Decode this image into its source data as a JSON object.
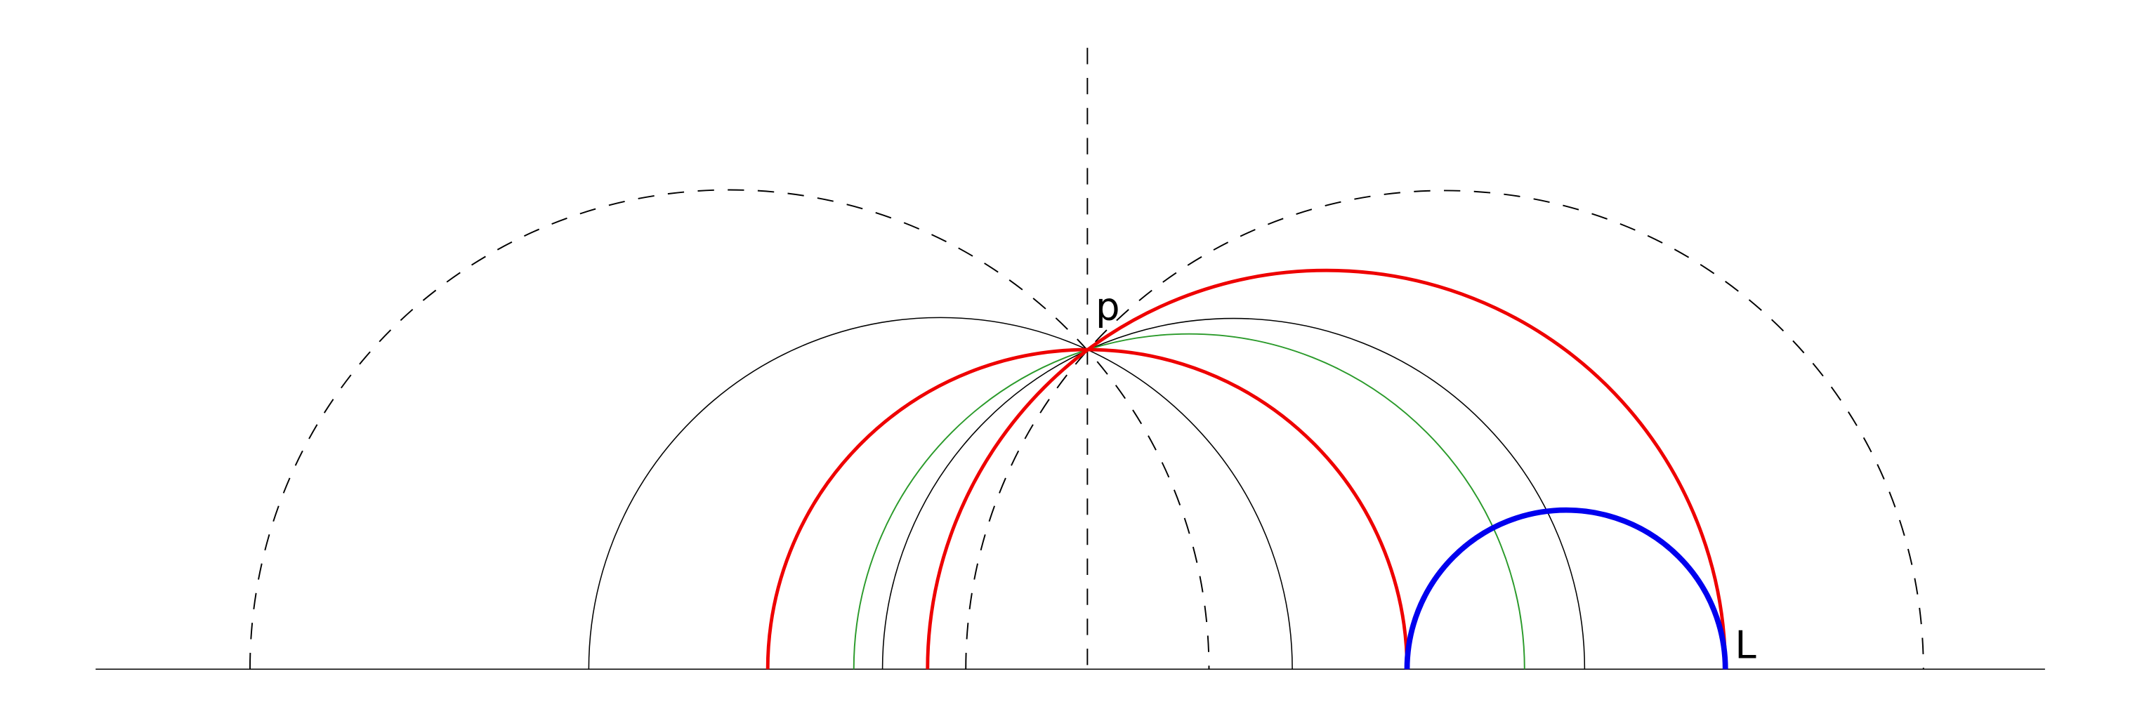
{
  "labels": {
    "point": "p",
    "line": "L"
  }
}
